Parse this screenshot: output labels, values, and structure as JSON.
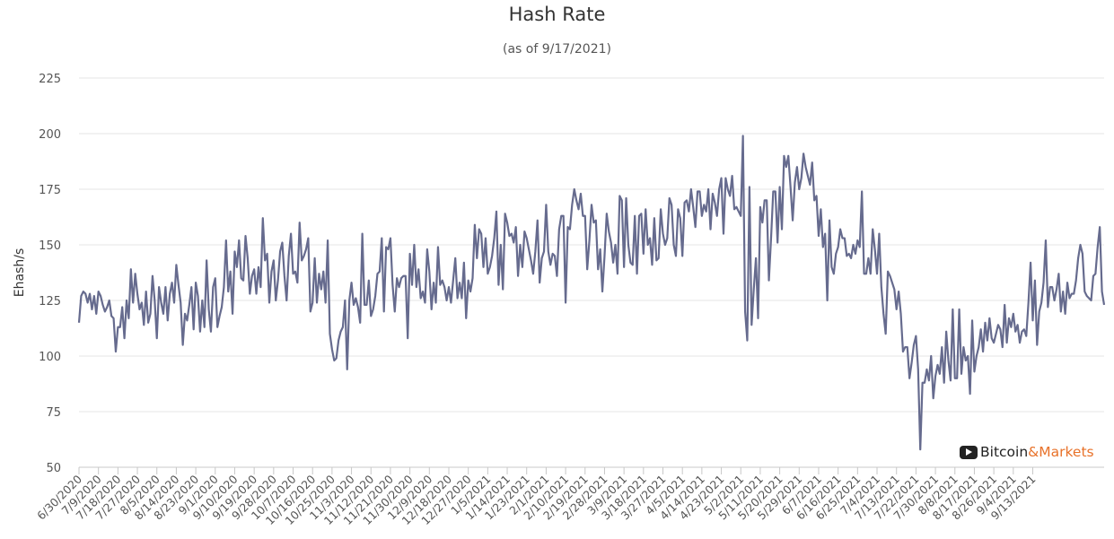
{
  "chart_data": {
    "type": "line",
    "title": "Hash Rate",
    "subtitle": "(as of 9/17/2021)",
    "xlabel": "",
    "ylabel": "Ehash/s",
    "ylim": [
      50,
      225
    ],
    "yticks": [
      50,
      75,
      100,
      125,
      150,
      175,
      200,
      225
    ],
    "grid": true,
    "legend": "none",
    "line_color": "#666b8e",
    "x_start": "6/30/2020",
    "x_end": "9/17/2021",
    "xtick_labels": [
      "6/30/2020",
      "7/9/2020",
      "7/18/2020",
      "7/27/2020",
      "8/5/2020",
      "8/14/2020",
      "8/23/2020",
      "9/1/2020",
      "9/10/2020",
      "9/19/2020",
      "9/28/2020",
      "10/7/2020",
      "10/16/2020",
      "10/25/2020",
      "11/3/2020",
      "11/12/2020",
      "11/21/2020",
      "11/30/2020",
      "12/9/2020",
      "12/18/2020",
      "12/27/2020",
      "1/5/2021",
      "1/14/2021",
      "1/23/2021",
      "2/1/2021",
      "2/10/2021",
      "2/19/2021",
      "2/28/2021",
      "3/9/2021",
      "3/18/2021",
      "3/27/2021",
      "4/5/2021",
      "4/14/2021",
      "4/23/2021",
      "5/2/2021",
      "5/11/2021",
      "5/20/2021",
      "5/29/2021",
      "6/7/2021",
      "6/16/2021",
      "6/25/2021",
      "7/4/2021",
      "7/13/2021",
      "7/22/2021",
      "7/30/2021",
      "8/8/2021",
      "8/17/2021",
      "8/26/2021",
      "9/4/2021",
      "9/13/2021"
    ],
    "series": [
      {
        "values": [
          115,
          127,
          129,
          128,
          124,
          128,
          121,
          127,
          119,
          129,
          127,
          123,
          120,
          122,
          125,
          118,
          117,
          102,
          113,
          113,
          122,
          108,
          125,
          117,
          139,
          124,
          137,
          128,
          121,
          124,
          114,
          129,
          115,
          119,
          136,
          125,
          108,
          131,
          124,
          119,
          131,
          116,
          128,
          133,
          124,
          141,
          132,
          124,
          105,
          119,
          116,
          123,
          131,
          112,
          133,
          127,
          111,
          125,
          113,
          143,
          121,
          111,
          131,
          135,
          113,
          118,
          122,
          131,
          152,
          129,
          138,
          119,
          147,
          140,
          152,
          135,
          134,
          154,
          144,
          128,
          136,
          139,
          128,
          140,
          131,
          162,
          143,
          146,
          124,
          138,
          143,
          125,
          134,
          147,
          151,
          136,
          125,
          145,
          155,
          137,
          138,
          133,
          160,
          143,
          145,
          148,
          153,
          120,
          124,
          144,
          124,
          137,
          130,
          138,
          124,
          152,
          110,
          103,
          98,
          99,
          107,
          111,
          113,
          125,
          94,
          125,
          133,
          123,
          126,
          122,
          115,
          155,
          123,
          123,
          134,
          118,
          121,
          127,
          137,
          138,
          153,
          120,
          149,
          148,
          153,
          132,
          120,
          135,
          131,
          135,
          136,
          136,
          108,
          146,
          132,
          150,
          131,
          139,
          126,
          129,
          124,
          148,
          138,
          121,
          133,
          124,
          149,
          132,
          134,
          131,
          125,
          131,
          124,
          134,
          144,
          126,
          133,
          126,
          142,
          117,
          134,
          129,
          135,
          159,
          144,
          157,
          155,
          140,
          153,
          137,
          140,
          145,
          153,
          165,
          132,
          150,
          130,
          164,
          160,
          154,
          155,
          151,
          158,
          136,
          150,
          140,
          156,
          153,
          148,
          143,
          137,
          147,
          161,
          133,
          144,
          147,
          168,
          147,
          141,
          146,
          145,
          136,
          157,
          163,
          163,
          124,
          158,
          157,
          168,
          175,
          170,
          166,
          173,
          163,
          163,
          139,
          152,
          168,
          160,
          161,
          139,
          148,
          129,
          145,
          164,
          156,
          151,
          142,
          150,
          137,
          172,
          170,
          140,
          171,
          150,
          142,
          141,
          163,
          137,
          163,
          164,
          146,
          166,
          150,
          153,
          141,
          162,
          143,
          144,
          166,
          155,
          150,
          153,
          171,
          168,
          150,
          145,
          166,
          162,
          145,
          169,
          170,
          165,
          175,
          167,
          158,
          174,
          174,
          163,
          168,
          165,
          175,
          157,
          173,
          169,
          163,
          175,
          180,
          155,
          180,
          175,
          172,
          181,
          166,
          167,
          165,
          163,
          199,
          120,
          107,
          176,
          114,
          130,
          144,
          117,
          167,
          160,
          170,
          170,
          134,
          153,
          174,
          174,
          151,
          176,
          157,
          190,
          185,
          190,
          176,
          161,
          178,
          185,
          175,
          180,
          191,
          185,
          181,
          177,
          187,
          170,
          172,
          154,
          166,
          149,
          155,
          125,
          161,
          140,
          137,
          146,
          149,
          157,
          153,
          153,
          145,
          146,
          144,
          150,
          146,
          152,
          149,
          174,
          137,
          137,
          144,
          137,
          157,
          148,
          137,
          155,
          131,
          119,
          110,
          138,
          136,
          133,
          130,
          121,
          129,
          119,
          102,
          104,
          104,
          90,
          97,
          105,
          109,
          94,
          58,
          88,
          88,
          94,
          89,
          100,
          81,
          91,
          96,
          92,
          104,
          88,
          111,
          98,
          89,
          121,
          90,
          90,
          121,
          92,
          104,
          98,
          100,
          83,
          116,
          93,
          100,
          104,
          112,
          102,
          115,
          107,
          117,
          108,
          106,
          110,
          114,
          112,
          104,
          123,
          106,
          117,
          113,
          119,
          111,
          114,
          106,
          111,
          112,
          109,
          124,
          142,
          116,
          134,
          105,
          120,
          124,
          133,
          152,
          122,
          131,
          131,
          125,
          130,
          137,
          120,
          129,
          119,
          133,
          126,
          128,
          128,
          134,
          144,
          150,
          146,
          129,
          127,
          126,
          125,
          136,
          137,
          149,
          158,
          129,
          123
        ]
      }
    ]
  },
  "watermark": {
    "part1": "Bitcoin",
    "part2": "&Markets",
    "icon": "play-icon"
  }
}
